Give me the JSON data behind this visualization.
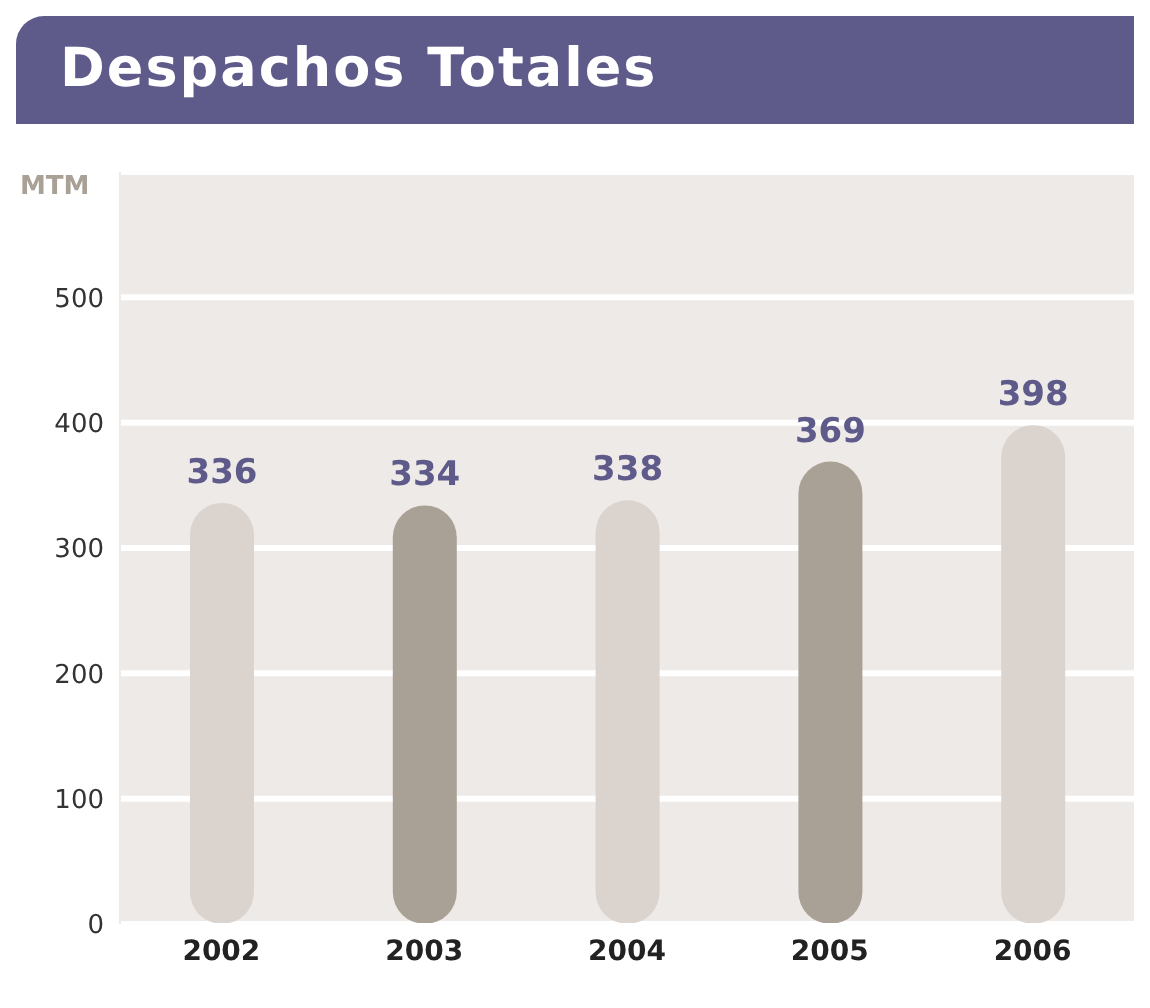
{
  "chart_data": {
    "type": "bar",
    "title": "Despachos Totales",
    "ylabel": "MTM",
    "categories": [
      "2002",
      "2003",
      "2004",
      "2005",
      "2006"
    ],
    "values": [
      336,
      334,
      338,
      369,
      398
    ],
    "colors": [
      "#dbd3ce",
      "#a9a196",
      "#dbd3ce",
      "#a9a196",
      "#dbd3ce"
    ],
    "ylim": [
      0,
      600
    ],
    "yticks": [
      0,
      100,
      200,
      300,
      400,
      500
    ],
    "grid": "y",
    "data_labels": true,
    "legend": false
  }
}
